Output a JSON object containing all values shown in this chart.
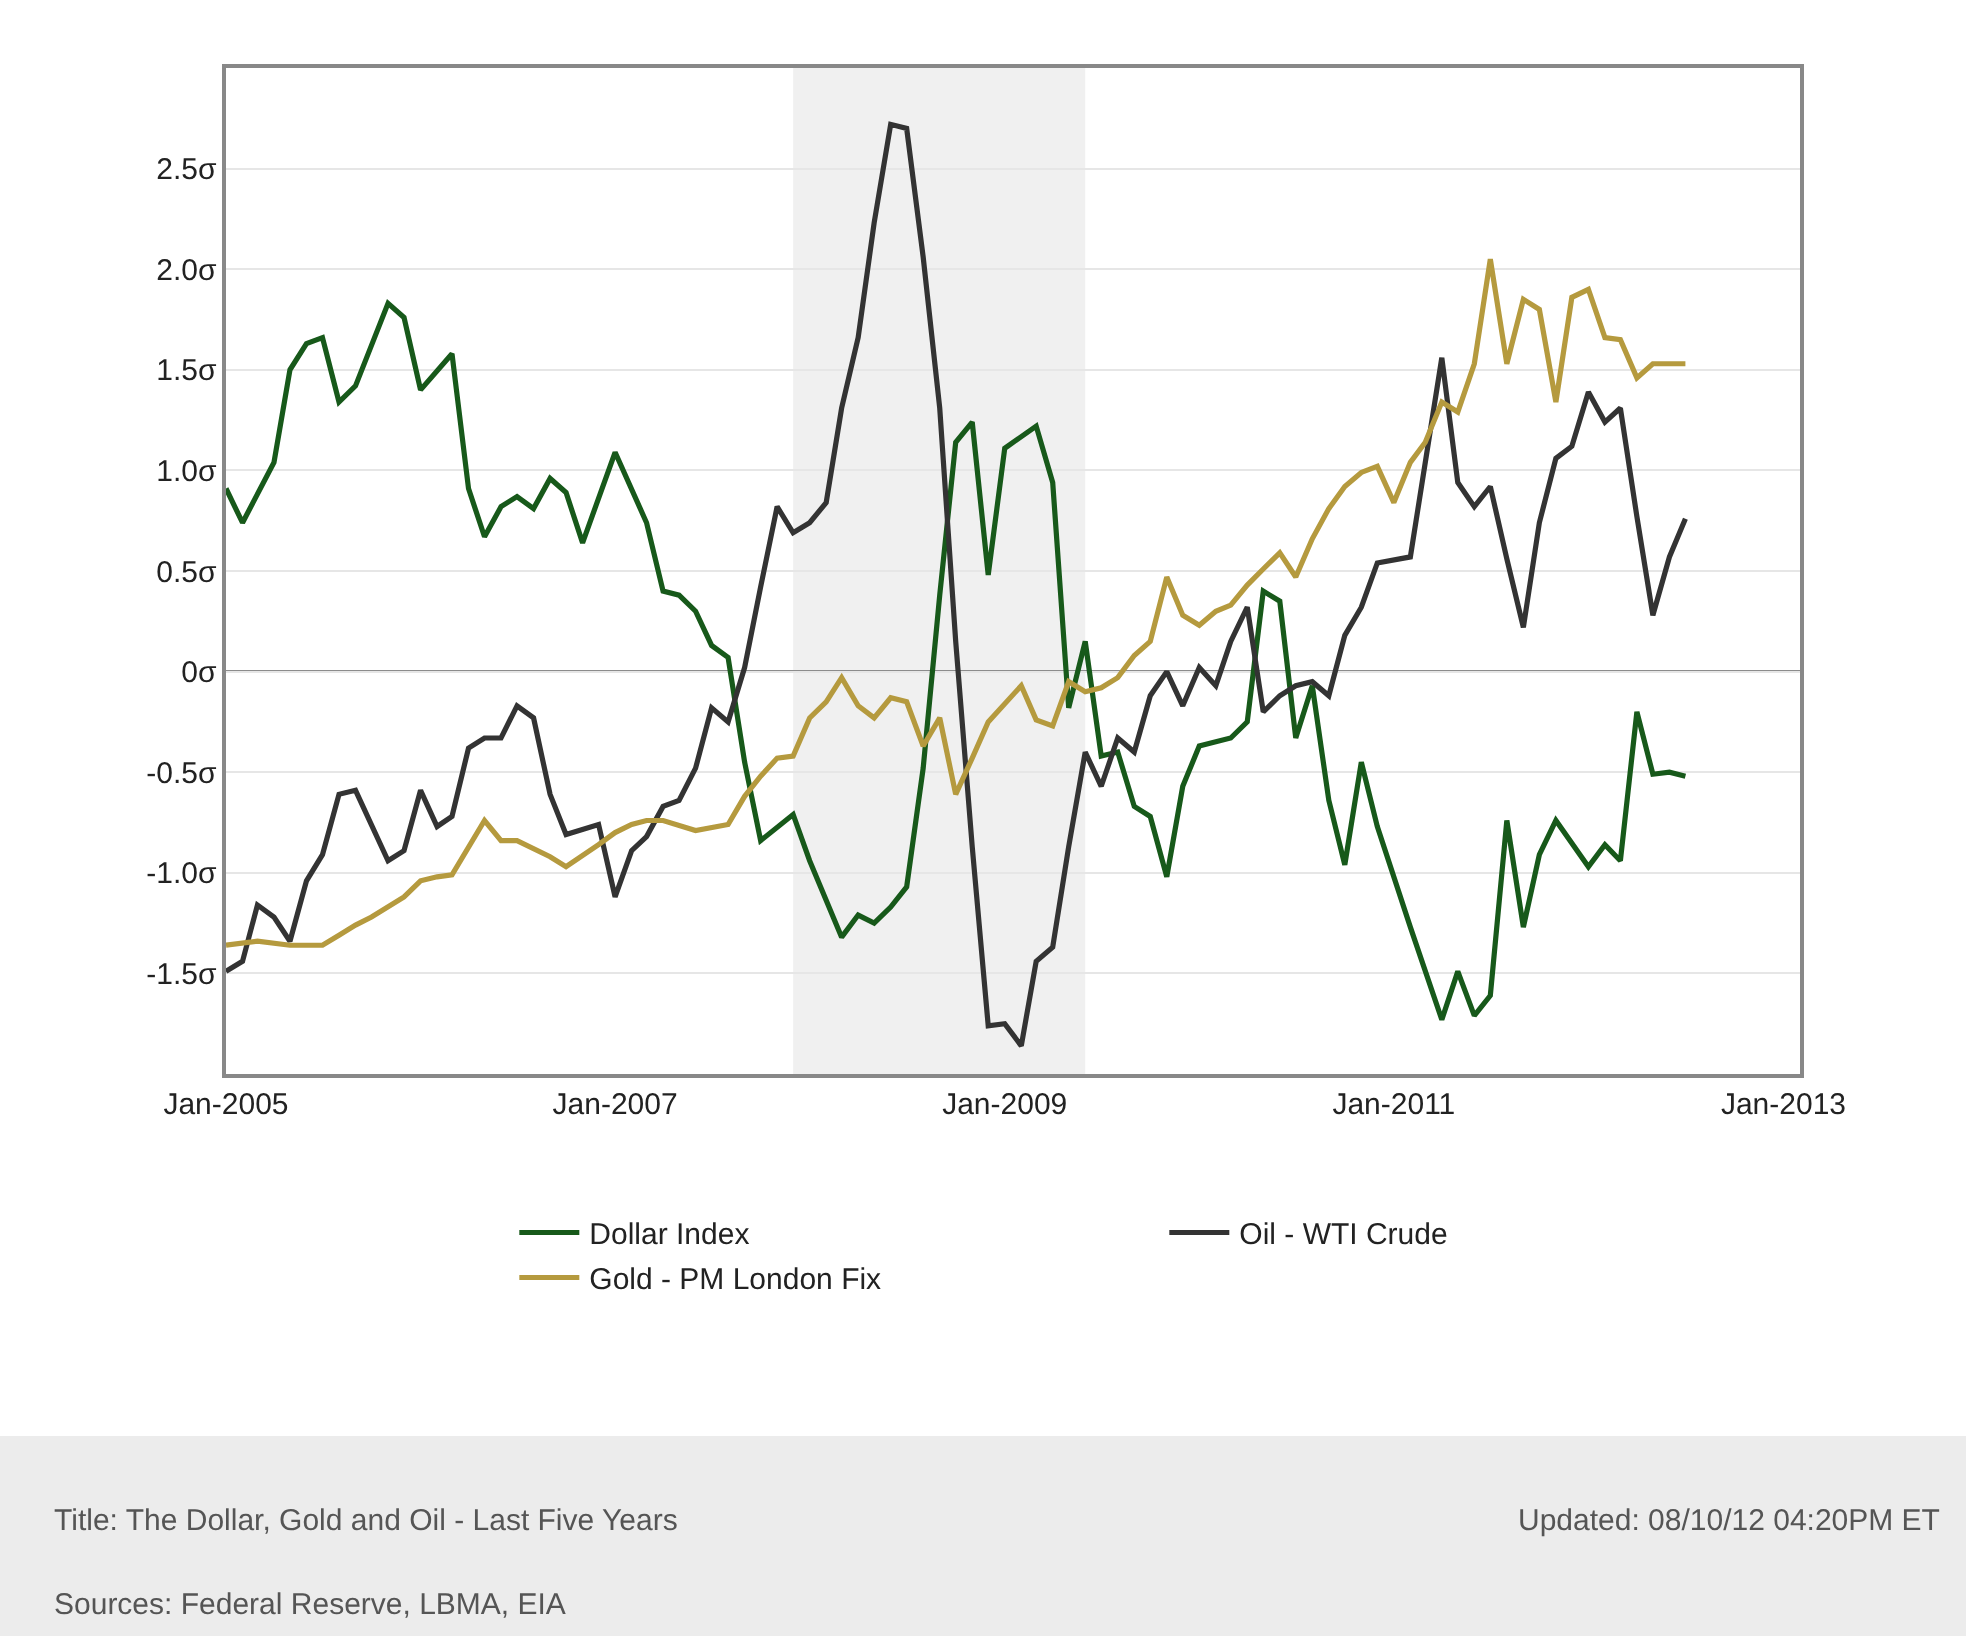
{
  "chart_data": {
    "type": "line",
    "xlim": [
      "2005-01",
      "2013-02"
    ],
    "xticks": [
      {
        "value": "2005-01",
        "label": "Jan-2005"
      },
      {
        "value": "2007-01",
        "label": "Jan-2007"
      },
      {
        "value": "2009-01",
        "label": "Jan-2009"
      },
      {
        "value": "2011-01",
        "label": "Jan-2011"
      },
      {
        "value": "2013-01",
        "label": "Jan-2013"
      }
    ],
    "ylim": [
      -2,
      3
    ],
    "yticks": [
      {
        "value": -1.5,
        "label": "-1.5σ"
      },
      {
        "value": -1,
        "label": "-1.0σ"
      },
      {
        "value": -0.5,
        "label": "-0.5σ"
      },
      {
        "value": 0,
        "label": "0σ"
      },
      {
        "value": 0.5,
        "label": "0.5σ"
      },
      {
        "value": 1,
        "label": "1.0σ"
      },
      {
        "value": 1.5,
        "label": "1.5σ"
      },
      {
        "value": 2,
        "label": "2.0σ"
      },
      {
        "value": 2.5,
        "label": "2.5σ"
      }
    ],
    "grid": "y",
    "legend": "bottom",
    "marker": "none",
    "line_style": "solid",
    "bands": [
      {
        "axis": "x",
        "from": "2007-12",
        "to": "2009-06",
        "color": "#f0f0f0"
      }
    ],
    "ref_lines": [
      {
        "axis": "y",
        "value": 0,
        "color": "#8c8c8c"
      }
    ],
    "series": [
      {
        "name": "Dollar Index",
        "color": "#17591a",
        "x": [
          "2005-01",
          "2005-02",
          "2005-04",
          "2005-05",
          "2005-06",
          "2005-07",
          "2005-08",
          "2005-09",
          "2005-11",
          "2005-12",
          "2006-01",
          "2006-03",
          "2006-04",
          "2006-05",
          "2006-06",
          "2006-07",
          "2006-08",
          "2006-09",
          "2006-10",
          "2006-11",
          "2007-01",
          "2007-03",
          "2007-04",
          "2007-05",
          "2007-06",
          "2007-07",
          "2007-08",
          "2007-09",
          "2007-10",
          "2007-12",
          "2008-01",
          "2008-03",
          "2008-04",
          "2008-05",
          "2008-06",
          "2008-07",
          "2008-08",
          "2008-09",
          "2008-10",
          "2008-11",
          "2008-12",
          "2009-01",
          "2009-03",
          "2009-04",
          "2009-05",
          "2009-06",
          "2009-07",
          "2009-08",
          "2009-09",
          "2009-10",
          "2009-11",
          "2009-12",
          "2010-01",
          "2010-03",
          "2010-04",
          "2010-05",
          "2010-06",
          "2010-07",
          "2010-08",
          "2010-09",
          "2010-10",
          "2010-11",
          "2010-12",
          "2011-02",
          "2011-04",
          "2011-05",
          "2011-06",
          "2011-07",
          "2011-08",
          "2011-09",
          "2011-10",
          "2011-11",
          "2012-01",
          "2012-02",
          "2012-03",
          "2012-04",
          "2012-05",
          "2012-06",
          "2012-07"
        ],
        "values": [
          0.91,
          0.74,
          1.04,
          1.5,
          1.63,
          1.66,
          1.34,
          1.42,
          1.83,
          1.76,
          1.4,
          1.58,
          0.91,
          0.67,
          0.82,
          0.87,
          0.81,
          0.96,
          0.89,
          0.64,
          1.09,
          0.74,
          0.4,
          0.38,
          0.3,
          0.13,
          0.07,
          -0.45,
          -0.84,
          -0.71,
          -0.94,
          -1.32,
          -1.21,
          -1.25,
          -1.17,
          -1.07,
          -0.48,
          0.38,
          1.14,
          1.24,
          0.48,
          1.11,
          1.22,
          0.94,
          -0.18,
          0.15,
          -0.42,
          -0.4,
          -0.67,
          -0.72,
          -1.02,
          -0.57,
          -0.37,
          -0.33,
          -0.25,
          0.4,
          0.35,
          -0.33,
          -0.07,
          -0.64,
          -0.96,
          -0.45,
          -0.77,
          -1.27,
          -1.73,
          -1.49,
          -1.71,
          -1.61,
          -0.74,
          -1.27,
          -0.91,
          -0.74,
          -0.97,
          -0.86,
          -0.94,
          -0.2,
          -0.51,
          -0.5,
          -0.52
        ]
      },
      {
        "name": "Oil - WTI Crude",
        "color": "#333333",
        "x": [
          "2005-01",
          "2005-02",
          "2005-03",
          "2005-04",
          "2005-05",
          "2005-06",
          "2005-07",
          "2005-08",
          "2005-09",
          "2005-11",
          "2005-12",
          "2006-01",
          "2006-02",
          "2006-03",
          "2006-04",
          "2006-05",
          "2006-06",
          "2006-07",
          "2006-08",
          "2006-09",
          "2006-10",
          "2006-12",
          "2007-01",
          "2007-02",
          "2007-03",
          "2007-04",
          "2007-05",
          "2007-06",
          "2007-07",
          "2007-08",
          "2007-09",
          "2007-10",
          "2007-11",
          "2007-12",
          "2008-01",
          "2008-02",
          "2008-03",
          "2008-04",
          "2008-05",
          "2008-06",
          "2008-07",
          "2008-08",
          "2008-09",
          "2008-10",
          "2008-11",
          "2008-12",
          "2009-01",
          "2009-02",
          "2009-03",
          "2009-04",
          "2009-05",
          "2009-06",
          "2009-07",
          "2009-08",
          "2009-09",
          "2009-10",
          "2009-11",
          "2009-12",
          "2010-01",
          "2010-02",
          "2010-03",
          "2010-04",
          "2010-05",
          "2010-06",
          "2010-07",
          "2010-08",
          "2010-09",
          "2010-10",
          "2010-11",
          "2010-12",
          "2011-02",
          "2011-04",
          "2011-05",
          "2011-06",
          "2011-07",
          "2011-08",
          "2011-09",
          "2011-10",
          "2011-11",
          "2011-12",
          "2012-01",
          "2012-02",
          "2012-03",
          "2012-04",
          "2012-05",
          "2012-06",
          "2012-07"
        ],
        "values": [
          -1.49,
          -1.44,
          -1.16,
          -1.22,
          -1.34,
          -1.04,
          -0.91,
          -0.61,
          -0.59,
          -0.94,
          -0.89,
          -0.59,
          -0.77,
          -0.72,
          -0.38,
          -0.33,
          -0.33,
          -0.17,
          -0.23,
          -0.61,
          -0.81,
          -0.76,
          -1.12,
          -0.89,
          -0.82,
          -0.67,
          -0.64,
          -0.48,
          -0.18,
          -0.25,
          0.02,
          0.42,
          0.82,
          0.69,
          0.74,
          0.84,
          1.31,
          1.66,
          2.23,
          2.72,
          2.7,
          2.06,
          1.31,
          0.15,
          -0.87,
          -1.76,
          -1.75,
          -1.86,
          -1.44,
          -1.37,
          -0.87,
          -0.4,
          -0.57,
          -0.33,
          -0.4,
          -0.12,
          0.0,
          -0.17,
          0.02,
          -0.07,
          0.15,
          0.32,
          -0.2,
          -0.12,
          -0.07,
          -0.05,
          -0.12,
          0.18,
          0.32,
          0.54,
          0.57,
          1.56,
          0.94,
          0.82,
          0.92,
          0.56,
          0.22,
          0.74,
          1.06,
          1.12,
          1.39,
          1.24,
          1.31,
          0.77,
          0.28,
          0.57,
          0.76
        ]
      },
      {
        "name": "Gold - PM London Fix",
        "color": "#b59a3e",
        "x": [
          "2005-01",
          "2005-03",
          "2005-05",
          "2005-07",
          "2005-08",
          "2005-09",
          "2005-10",
          "2005-12",
          "2006-01",
          "2006-02",
          "2006-03",
          "2006-05",
          "2006-06",
          "2006-07",
          "2006-09",
          "2006-10",
          "2006-12",
          "2007-01",
          "2007-02",
          "2007-03",
          "2007-04",
          "2007-06",
          "2007-08",
          "2007-09",
          "2007-10",
          "2007-11",
          "2007-12",
          "2008-01",
          "2008-02",
          "2008-03",
          "2008-04",
          "2008-05",
          "2008-06",
          "2008-07",
          "2008-08",
          "2008-09",
          "2008-10",
          "2008-11",
          "2008-12",
          "2009-02",
          "2009-03",
          "2009-04",
          "2009-05",
          "2009-06",
          "2009-07",
          "2009-08",
          "2009-09",
          "2009-10",
          "2009-11",
          "2009-12",
          "2010-01",
          "2010-02",
          "2010-03",
          "2010-04",
          "2010-05",
          "2010-06",
          "2010-07",
          "2010-08",
          "2010-09",
          "2010-10",
          "2010-11",
          "2010-12",
          "2011-01",
          "2011-02",
          "2011-03",
          "2011-04",
          "2011-05",
          "2011-06",
          "2011-07",
          "2011-08",
          "2011-09",
          "2011-10",
          "2011-11",
          "2011-12",
          "2012-01",
          "2012-02",
          "2012-03",
          "2012-04",
          "2012-05",
          "2012-07"
        ],
        "values": [
          -1.36,
          -1.34,
          -1.36,
          -1.36,
          -1.31,
          -1.26,
          -1.22,
          -1.12,
          -1.04,
          -1.02,
          -1.01,
          -0.74,
          -0.84,
          -0.84,
          -0.92,
          -0.97,
          -0.86,
          -0.8,
          -0.76,
          -0.74,
          -0.74,
          -0.79,
          -0.76,
          -0.62,
          -0.52,
          -0.43,
          -0.42,
          -0.23,
          -0.15,
          -0.03,
          -0.17,
          -0.23,
          -0.13,
          -0.15,
          -0.37,
          -0.23,
          -0.61,
          -0.43,
          -0.25,
          -0.07,
          -0.24,
          -0.27,
          -0.05,
          -0.1,
          -0.08,
          -0.03,
          0.08,
          0.15,
          0.47,
          0.28,
          0.23,
          0.3,
          0.33,
          0.43,
          0.51,
          0.59,
          0.47,
          0.66,
          0.81,
          0.92,
          0.99,
          1.02,
          0.84,
          1.04,
          1.14,
          1.34,
          1.29,
          1.53,
          2.05,
          1.53,
          1.85,
          1.8,
          1.34,
          1.86,
          1.9,
          1.66,
          1.65,
          1.46,
          1.53,
          1.53
        ]
      }
    ],
    "annotations": [
      "Title: The Dollar, Gold and Oil - Last Five Years",
      "Updated: 08/10/12 04:20PM ET",
      "Sources: Federal Reserve, LBMA, EIA"
    ]
  }
}
